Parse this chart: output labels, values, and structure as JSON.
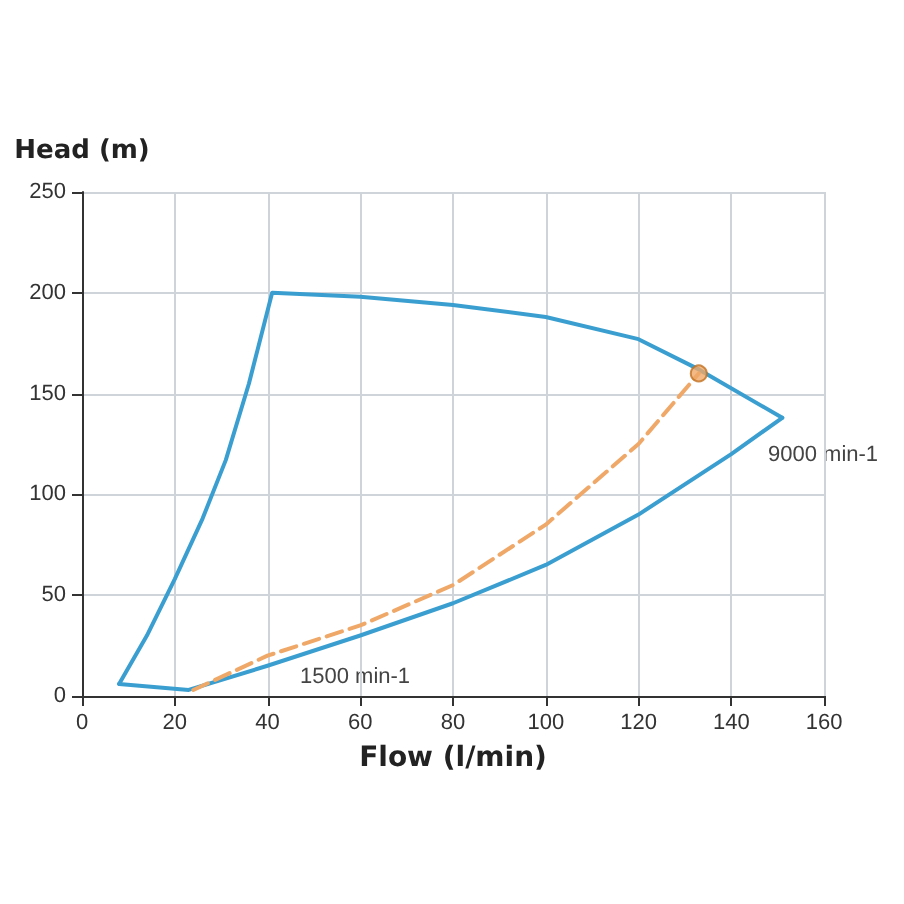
{
  "chart_data": {
    "type": "line",
    "xlabel": "Flow (l/min)",
    "ylabel": "Head (m)",
    "series": [
      {
        "color": "#3a9fd0",
        "line_style": "solid",
        "x": [
          8,
          14,
          20,
          26,
          31,
          36,
          41,
          60,
          80,
          100,
          120,
          133,
          151
        ],
        "values": [
          6,
          30,
          58,
          88,
          117,
          155,
          200,
          198,
          194,
          188,
          177,
          162,
          138
        ]
      },
      {
        "color": "#3a9fd0",
        "line_style": "solid",
        "x": [
          8,
          23,
          40,
          60,
          80,
          100,
          120,
          140,
          151
        ],
        "values": [
          6,
          3,
          15,
          30,
          46,
          65,
          90,
          120,
          138
        ]
      },
      {
        "color": "#f0a868",
        "line_style": "dashed",
        "x": [
          24,
          40,
          60,
          80,
          100,
          120,
          133
        ],
        "values": [
          3,
          20,
          35,
          55,
          85,
          125,
          160
        ]
      },
      {
        "type": "scatter",
        "color": "#f0a868",
        "marker": "circle",
        "x": [
          133
        ],
        "values": [
          160
        ]
      }
    ],
    "xlim": [
      0,
      160
    ],
    "xticks": [
      0,
      20,
      40,
      60,
      80,
      100,
      120,
      140,
      160
    ],
    "ylim": [
      0,
      250
    ],
    "yticks": [
      0,
      50,
      100,
      150,
      200,
      250
    ],
    "grid": true,
    "marker": "none",
    "annotations": [
      "9000 min-1",
      "1500 min-1"
    ]
  }
}
